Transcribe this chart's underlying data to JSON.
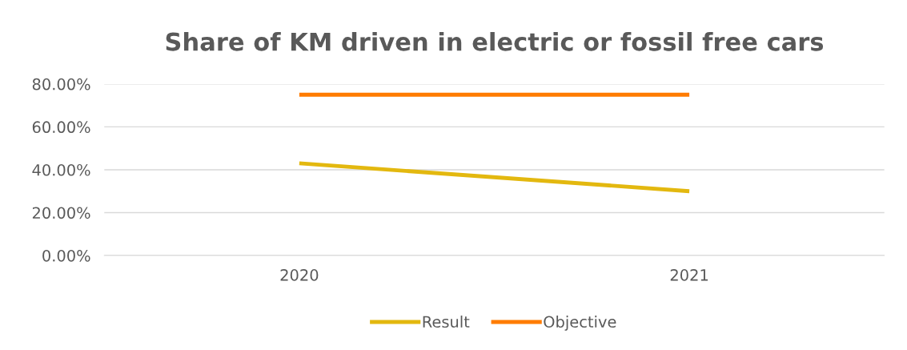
{
  "chart_data": {
    "type": "line",
    "title": "Share of KM driven in electric or fossil free cars",
    "categories": [
      "2020",
      "2021"
    ],
    "series": [
      {
        "name": "Result",
        "color": "#e3b80f",
        "values": [
          43,
          30
        ]
      },
      {
        "name": "Objective",
        "color": "#ff7c00",
        "values": [
          75,
          75
        ]
      }
    ],
    "ylim": [
      0,
      80
    ],
    "yticks": [
      {
        "value": 0,
        "label": "0.00%"
      },
      {
        "value": 20,
        "label": "20.00%"
      },
      {
        "value": 40,
        "label": "40.00%"
      },
      {
        "value": 60,
        "label": "60.00%"
      },
      {
        "value": 80,
        "label": "80.00%"
      }
    ],
    "grid": "y",
    "legend": "bottom",
    "marker": "none",
    "line_style": "solid"
  }
}
